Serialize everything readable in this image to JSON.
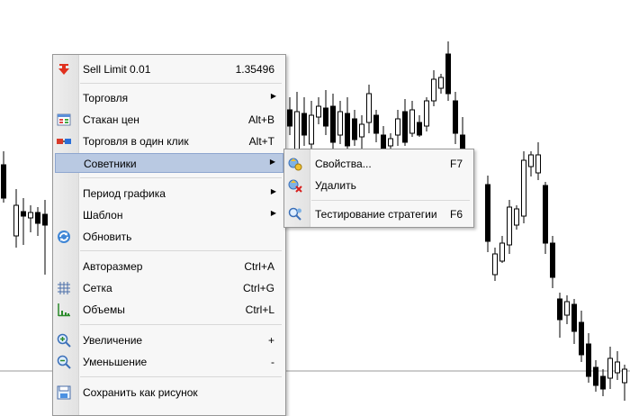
{
  "context_menu": {
    "header": {
      "label": "Sell Limit 0.01",
      "price": "1.35496",
      "icon": "sell-limit-arrow-icon"
    },
    "items": [
      {
        "id": "trading",
        "label": "Торговля",
        "submenu": true
      },
      {
        "id": "depth",
        "label": "Стакан цен",
        "shortcut": "Alt+B",
        "icon": "depth-of-market-icon"
      },
      {
        "id": "oneclick",
        "label": "Торговля в один клик",
        "shortcut": "Alt+T",
        "icon": "one-click-icon"
      },
      {
        "id": "advisors",
        "label": "Советники",
        "submenu": true,
        "highlighted": true
      },
      {
        "id": "period",
        "label": "Период графика",
        "submenu": true
      },
      {
        "id": "template",
        "label": "Шаблон",
        "submenu": true
      },
      {
        "id": "refresh",
        "label": "Обновить",
        "icon": "refresh-icon"
      },
      {
        "id": "autoscale",
        "label": "Авторазмер",
        "shortcut": "Ctrl+A"
      },
      {
        "id": "grid",
        "label": "Сетка",
        "shortcut": "Ctrl+G",
        "icon": "grid-icon"
      },
      {
        "id": "volumes",
        "label": "Объемы",
        "shortcut": "Ctrl+L",
        "icon": "volumes-icon"
      },
      {
        "id": "zoomin",
        "label": "Увеличение",
        "shortcut": "+",
        "icon": "zoom-in-icon"
      },
      {
        "id": "zoomout",
        "label": "Уменьшение",
        "shortcut": "-",
        "icon": "zoom-out-icon"
      },
      {
        "id": "saveimg",
        "label": "Сохранить как рисунок",
        "icon": "save-picture-icon"
      }
    ]
  },
  "submenu_advisors": {
    "items": [
      {
        "id": "properties",
        "label": "Свойства...",
        "shortcut": "F7",
        "icon": "expert-properties-icon"
      },
      {
        "id": "remove",
        "label": "Удалить",
        "icon": "expert-remove-icon"
      },
      {
        "id": "tester",
        "label": "Тестирование стратегии",
        "shortcut": "F6",
        "icon": "strategy-tester-icon"
      }
    ]
  },
  "colors": {
    "highlight": "#b9c9e2",
    "menu_background": "#f7f7f7",
    "candle_bull": "#ffffff",
    "candle_bear": "#000000",
    "sell_arrow": "#e0301e"
  }
}
